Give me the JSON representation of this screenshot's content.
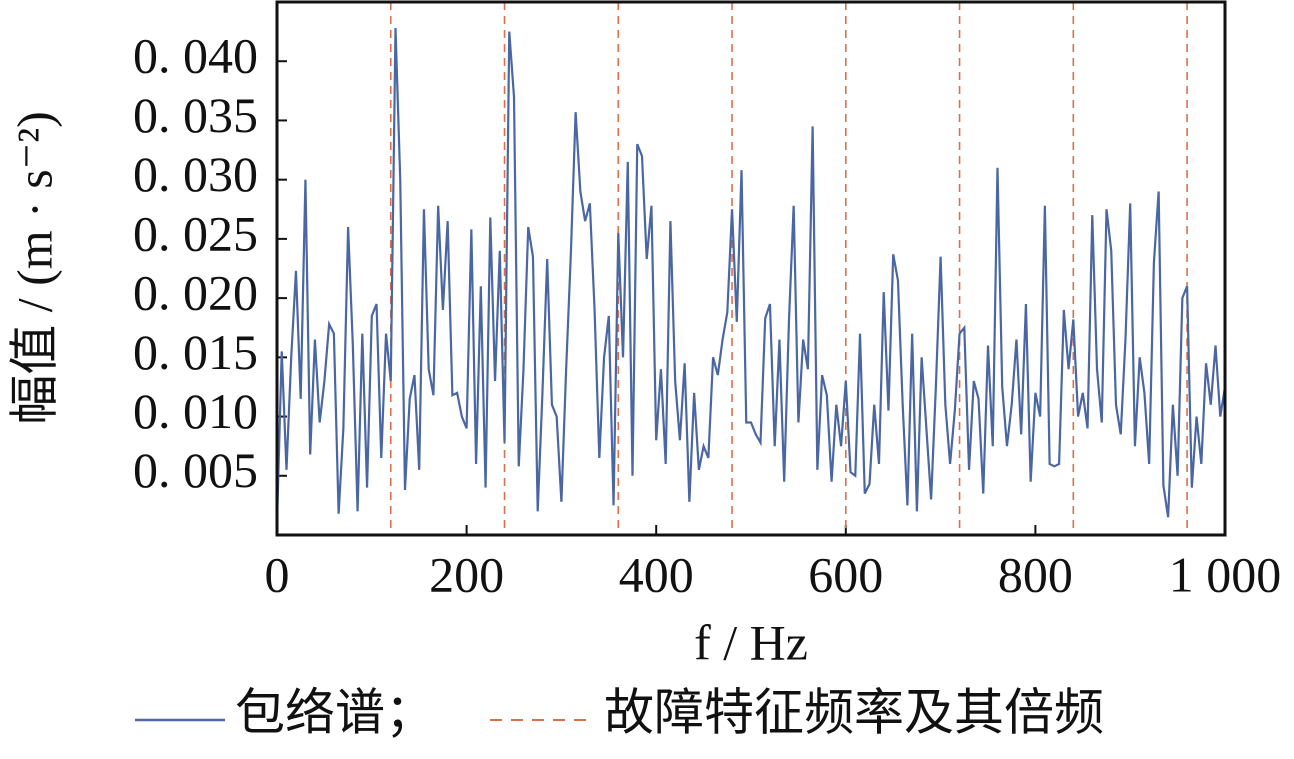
{
  "chart_data": {
    "type": "line",
    "ylabel": "幅值 / (m · s⁻²)",
    "xlabel": "f / Hz",
    "x": [
      0,
      5,
      10,
      15,
      20,
      25,
      30,
      35,
      40,
      45,
      50,
      55,
      60,
      65,
      70,
      75,
      80,
      85,
      90,
      95,
      100,
      105,
      110,
      115,
      120,
      125,
      130,
      135,
      140,
      145,
      150,
      155,
      160,
      165,
      170,
      175,
      180,
      185,
      190,
      195,
      200,
      205,
      210,
      215,
      220,
      225,
      230,
      235,
      240,
      245,
      250,
      255,
      260,
      265,
      270,
      275,
      280,
      285,
      290,
      295,
      300,
      305,
      310,
      315,
      320,
      325,
      330,
      335,
      340,
      345,
      350,
      355,
      360,
      365,
      370,
      375,
      380,
      385,
      390,
      395,
      400,
      405,
      410,
      415,
      420,
      425,
      430,
      435,
      440,
      445,
      450,
      455,
      460,
      465,
      470,
      475,
      480,
      485,
      490,
      495,
      500,
      505,
      510,
      515,
      520,
      525,
      530,
      535,
      540,
      545,
      550,
      555,
      560,
      565,
      570,
      575,
      580,
      585,
      590,
      595,
      600,
      605,
      610,
      615,
      620,
      625,
      630,
      635,
      640,
      645,
      650,
      655,
      660,
      665,
      670,
      675,
      680,
      685,
      690,
      695,
      700,
      705,
      710,
      715,
      720,
      725,
      730,
      735,
      740,
      745,
      750,
      755,
      760,
      765,
      770,
      775,
      780,
      785,
      790,
      795,
      800,
      805,
      810,
      815,
      820,
      825,
      830,
      835,
      840,
      845,
      850,
      855,
      860,
      865,
      870,
      875,
      880,
      885,
      890,
      895,
      900,
      905,
      910,
      915,
      920,
      925,
      930,
      935,
      940,
      945,
      950,
      955,
      960,
      965,
      970,
      975,
      980,
      985,
      990,
      995,
      1000
    ],
    "series": [
      {
        "name": "包络谱；",
        "color": "#4a67a3",
        "values": [
          0.001,
          0.0155,
          0.0055,
          0.015,
          0.0223,
          0.0115,
          0.03,
          0.0068,
          0.0165,
          0.0095,
          0.013,
          0.0178,
          0.017,
          0.0018,
          0.009,
          0.026,
          0.016,
          0.002,
          0.017,
          0.004,
          0.0185,
          0.0195,
          0.0065,
          0.017,
          0.013,
          0.0428,
          0.03,
          0.0038,
          0.0115,
          0.0135,
          0.0055,
          0.0275,
          0.014,
          0.0118,
          0.0278,
          0.019,
          0.0265,
          0.0118,
          0.012,
          0.01,
          0.009,
          0.0258,
          0.006,
          0.021,
          0.004,
          0.0268,
          0.013,
          0.024,
          0.0078,
          0.0425,
          0.037,
          0.0058,
          0.014,
          0.026,
          0.0235,
          0.002,
          0.012,
          0.0233,
          0.011,
          0.01,
          0.0028,
          0.014,
          0.0238,
          0.0357,
          0.029,
          0.0265,
          0.028,
          0.019,
          0.0065,
          0.015,
          0.0185,
          0.0025,
          0.0255,
          0.015,
          0.0315,
          0.005,
          0.033,
          0.032,
          0.0233,
          0.0278,
          0.008,
          0.014,
          0.006,
          0.0265,
          0.013,
          0.008,
          0.0145,
          0.0028,
          0.012,
          0.0055,
          0.0075,
          0.0065,
          0.015,
          0.0135,
          0.0165,
          0.0188,
          0.0275,
          0.018,
          0.0308,
          0.0095,
          0.0095,
          0.0085,
          0.0078,
          0.0183,
          0.0195,
          0.0075,
          0.0165,
          0.0045,
          0.018,
          0.0278,
          0.0095,
          0.0165,
          0.014,
          0.0345,
          0.0055,
          0.0135,
          0.0118,
          0.0045,
          0.011,
          0.0075,
          0.013,
          0.0053,
          0.005,
          0.017,
          0.0035,
          0.0043,
          0.011,
          0.006,
          0.0205,
          0.0105,
          0.0237,
          0.0215,
          0.011,
          0.0025,
          0.017,
          0.002,
          0.015,
          0.009,
          0.003,
          0.0125,
          0.0235,
          0.011,
          0.006,
          0.0105,
          0.017,
          0.0175,
          0.0055,
          0.013,
          0.0115,
          0.0035,
          0.016,
          0.0075,
          0.031,
          0.0125,
          0.0075,
          0.011,
          0.0165,
          0.0085,
          0.0195,
          0.0045,
          0.012,
          0.01,
          0.0278,
          0.006,
          0.0058,
          0.006,
          0.019,
          0.014,
          0.0182,
          0.01,
          0.012,
          0.009,
          0.027,
          0.014,
          0.0095,
          0.0275,
          0.024,
          0.011,
          0.0085,
          0.0165,
          0.028,
          0.0075,
          0.015,
          0.012,
          0.006,
          0.023,
          0.029,
          0.0042,
          0.0015,
          0.011,
          0.005,
          0.02,
          0.021,
          0.004,
          0.01,
          0.006,
          0.0145,
          0.011,
          0.016,
          0.01,
          0.0125
        ]
      }
    ],
    "fault_frequencies": {
      "name": "故障特征频率及其倍频",
      "color": "#d9704a",
      "values": [
        120,
        240,
        360,
        480,
        600,
        720,
        840,
        960
      ]
    },
    "xlim": [
      0,
      1000
    ],
    "xticks": [
      0,
      200,
      400,
      600,
      800,
      {
        "value": 1000,
        "label": "1 000"
      }
    ],
    "ylim": [
      0,
      0.045
    ],
    "yticks": [
      {
        "value": 0.005,
        "label": "0. 005"
      },
      {
        "value": 0.01,
        "label": "0. 010"
      },
      {
        "value": 0.015,
        "label": "0. 015"
      },
      {
        "value": 0.02,
        "label": "0. 020"
      },
      {
        "value": 0.025,
        "label": "0. 025"
      },
      {
        "value": 0.03,
        "label": "0. 030"
      },
      {
        "value": 0.035,
        "label": "0. 035"
      },
      {
        "value": 0.04,
        "label": "0. 040"
      }
    ]
  }
}
